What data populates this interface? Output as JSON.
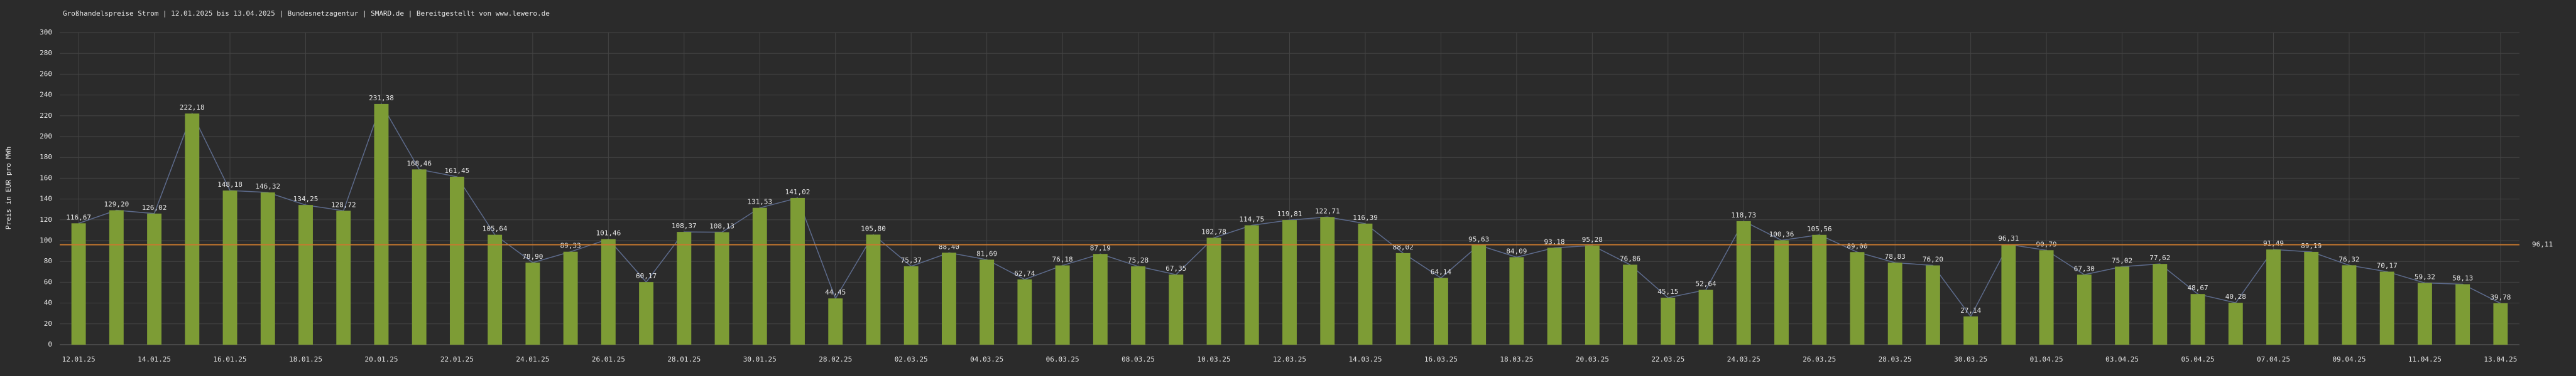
{
  "chart_data": {
    "type": "bar",
    "title": "Großhandelspreise Strom | 12.01.2025 bis 13.04.2025 | Bundesnetzagentur | SMARD.de | Bereitgestellt von www.lewero.de",
    "y_label": "Preis in EUR pro MWh",
    "categories": [
      "12.01.25",
      null,
      "14.01.25",
      null,
      "16.01.25",
      null,
      "18.01.25",
      null,
      "20.01.25",
      null,
      "22.01.25",
      null,
      "24.01.25",
      null,
      "26.01.25",
      null,
      "28.01.25",
      null,
      "30.01.25",
      null,
      "28.02.25",
      null,
      "02.03.25",
      null,
      "04.03.25",
      null,
      "06.03.25",
      null,
      "08.03.25",
      null,
      "10.03.25",
      null,
      "12.03.25",
      null,
      "14.03.25",
      null,
      "16.03.25",
      null,
      "18.03.25",
      null,
      "20.03.25",
      null,
      "22.03.25",
      null,
      "24.03.25",
      null,
      "26.03.25",
      null,
      "28.03.25",
      null,
      "30.03.25",
      null,
      "01.04.25",
      null,
      "03.04.25",
      null,
      "05.04.25",
      null,
      "07.04.25",
      null,
      "09.04.25",
      null,
      "11.04.25",
      null,
      "13.04.25"
    ],
    "values": [
      116.67,
      129.2,
      126.02,
      222.18,
      148.18,
      146.32,
      134.25,
      128.72,
      231.38,
      168.46,
      161.45,
      105.64,
      78.9,
      89.33,
      101.46,
      60.17,
      108.37,
      108.13,
      131.53,
      141.02,
      44.45,
      105.8,
      75.37,
      88.4,
      81.69,
      62.74,
      76.18,
      87.19,
      75.28,
      67.35,
      102.78,
      114.75,
      119.81,
      122.71,
      116.39,
      88.02,
      64.14,
      95.63,
      84.09,
      93.18,
      95.28,
      76.86,
      45.15,
      52.64,
      118.73,
      100.36,
      105.56,
      89.0,
      78.83,
      76.2,
      27.14,
      96.31,
      90.79,
      67.3,
      75.02,
      77.62,
      48.67,
      40.28,
      91.49,
      89.19,
      76.32,
      70.17,
      59.32,
      58.13,
      39.78
    ],
    "value_labels": [
      "116,67",
      "129,20",
      "126,02",
      "222,18",
      "148,18",
      "146,32",
      "134,25",
      "128,72",
      "231,38",
      "168,46",
      "161,45",
      "105,64",
      "78,90",
      "89,33",
      "101,46",
      "60,17",
      "108,37",
      "108,13",
      "131,53",
      "141,02",
      "44,45",
      "105,80",
      "75,37",
      "88,40",
      "81,69",
      "62,74",
      "76,18",
      "87,19",
      "75,28",
      "67,35",
      "102,78",
      "114,75",
      "119,81",
      "122,71",
      "116,39",
      "88,02",
      "64,14",
      "95,63",
      "84,09",
      "93,18",
      "95,28",
      "76,86",
      "45,15",
      "52,64",
      "118,73",
      "100,36",
      "105,56",
      "89,00",
      "78,83",
      "76,20",
      "27,14",
      "96,31",
      "90,79",
      "67,30",
      "75,02",
      "77,62",
      "48,67",
      "40,28",
      "91,49",
      "89,19",
      "76,32",
      "70,17",
      "59,32",
      "58,13",
      "39,78"
    ],
    "color": "#7d9c35",
    "line_color": "#5d6b8c",
    "average": {
      "value": 96.11,
      "label": "96,11"
    },
    "average_color": "#c8782e",
    "ylim": [
      0,
      300
    ],
    "yticks": [
      0,
      20,
      40,
      60,
      80,
      100,
      120,
      140,
      160,
      180,
      200,
      220,
      240,
      260,
      280,
      300
    ],
    "grid": true
  }
}
